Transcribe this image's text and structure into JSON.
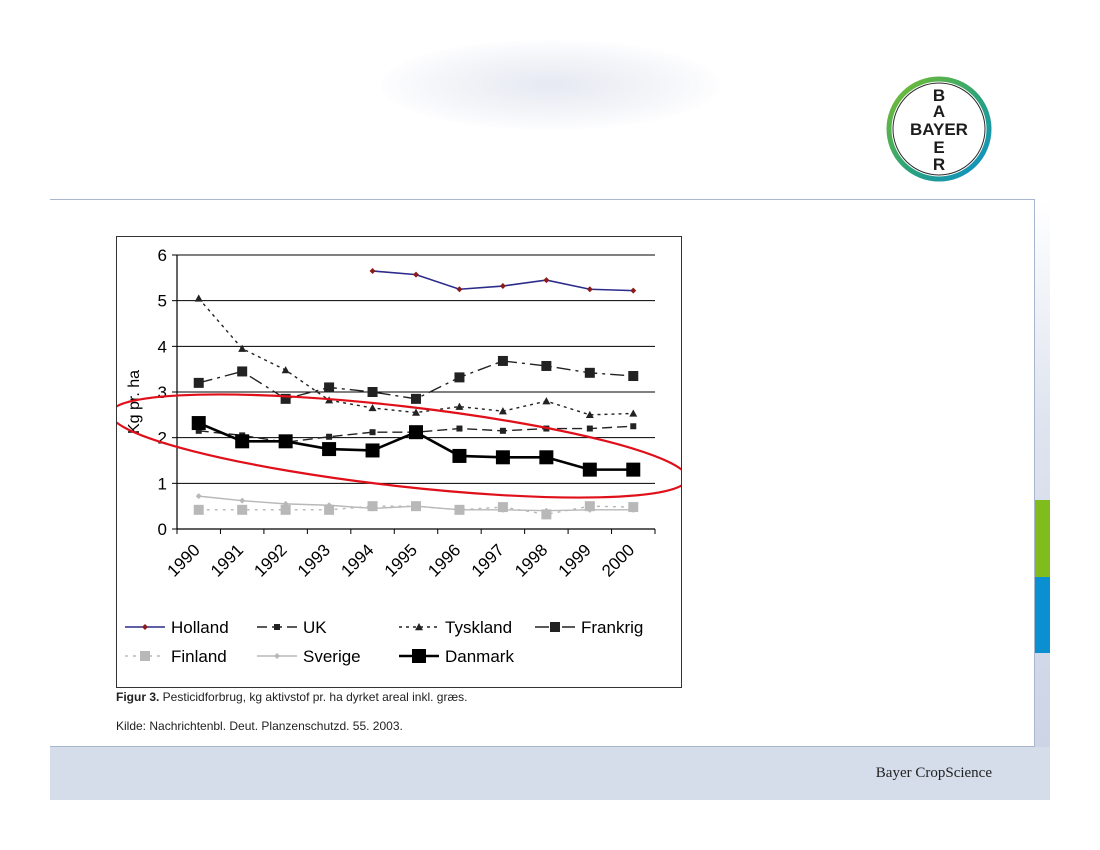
{
  "brand": {
    "logo_text": "BAYER",
    "logo_vertical": [
      "B",
      "A",
      "Y",
      "E",
      "R"
    ],
    "footer": "Bayer CropScience"
  },
  "caption": {
    "label": "Figur 3.",
    "text": " Pesticidforbrug, kg aktivstof pr. ha dyrket areal inkl. græs.",
    "source": "Kilde: Nachrichtenbl. Deut. Planzenschutzd. 55. 2003."
  },
  "chart_data": {
    "type": "line",
    "title": "",
    "ylabel": "Kg pr. ha",
    "xlabel": "",
    "ylim": [
      0,
      6
    ],
    "yticks": [
      "0",
      "1",
      "2",
      "3",
      "4",
      "5",
      "6"
    ],
    "categories": [
      "1990",
      "1991",
      "1992",
      "1993",
      "1994",
      "1995",
      "1996",
      "1997",
      "1998",
      "1999",
      "2000"
    ],
    "grid": true,
    "legend_position": "bottom",
    "annotation": "red ellipse highlighting Danmark",
    "series": [
      {
        "name": "Holland",
        "color": "#2b2b8c",
        "dash": "",
        "marker": "diamond",
        "markerColor": "#8b1a1a",
        "lineWidth": 1.6,
        "markerSize": 3,
        "values": [
          null,
          null,
          null,
          null,
          5.65,
          5.57,
          5.25,
          5.32,
          5.45,
          5.25,
          5.22
        ]
      },
      {
        "name": "UK",
        "color": "#222222",
        "dash": "10,5",
        "marker": "square",
        "markerColor": "#222222",
        "lineWidth": 1.4,
        "markerSize": 3,
        "values": [
          2.15,
          2.05,
          1.9,
          2.02,
          2.12,
          2.12,
          2.2,
          2.15,
          2.2,
          2.2,
          2.25
        ]
      },
      {
        "name": "Tyskland",
        "color": "#222222",
        "dash": "3,4",
        "marker": "triangle",
        "markerColor": "#222222",
        "lineWidth": 1.4,
        "markerSize": 4,
        "values": [
          5.05,
          3.95,
          3.48,
          2.82,
          2.65,
          2.55,
          2.68,
          2.58,
          2.8,
          2.5,
          2.53
        ]
      },
      {
        "name": "Frankrig",
        "color": "#222222",
        "dash": "14,5,3,5",
        "marker": "square",
        "markerColor": "#222222",
        "lineWidth": 1.4,
        "markerSize": 5,
        "values": [
          3.2,
          3.45,
          2.85,
          3.1,
          3.0,
          2.85,
          3.32,
          3.68,
          3.57,
          3.42,
          3.35
        ]
      },
      {
        "name": "Finland",
        "color": "#b8b8b8",
        "dash": "3,5",
        "marker": "square",
        "markerColor": "#b8b8b8",
        "lineWidth": 1.4,
        "markerSize": 5,
        "values": [
          0.42,
          0.42,
          0.42,
          0.42,
          0.5,
          0.5,
          0.42,
          0.48,
          0.32,
          0.5,
          0.48
        ]
      },
      {
        "name": "Sverige",
        "color": "#b8b8b8",
        "dash": "",
        "marker": "diamond",
        "markerColor": "#b8b8b8",
        "lineWidth": 1.4,
        "markerSize": 3,
        "values": [
          0.72,
          0.62,
          0.55,
          0.52,
          0.45,
          0.5,
          0.42,
          0.42,
          0.4,
          0.42,
          0.42
        ]
      },
      {
        "name": "Danmark",
        "color": "#000000",
        "dash": "",
        "marker": "square",
        "markerColor": "#000000",
        "lineWidth": 2.6,
        "markerSize": 7,
        "values": [
          2.32,
          1.92,
          1.92,
          1.75,
          1.72,
          2.12,
          1.6,
          1.57,
          1.57,
          1.3,
          1.3
        ]
      }
    ]
  }
}
